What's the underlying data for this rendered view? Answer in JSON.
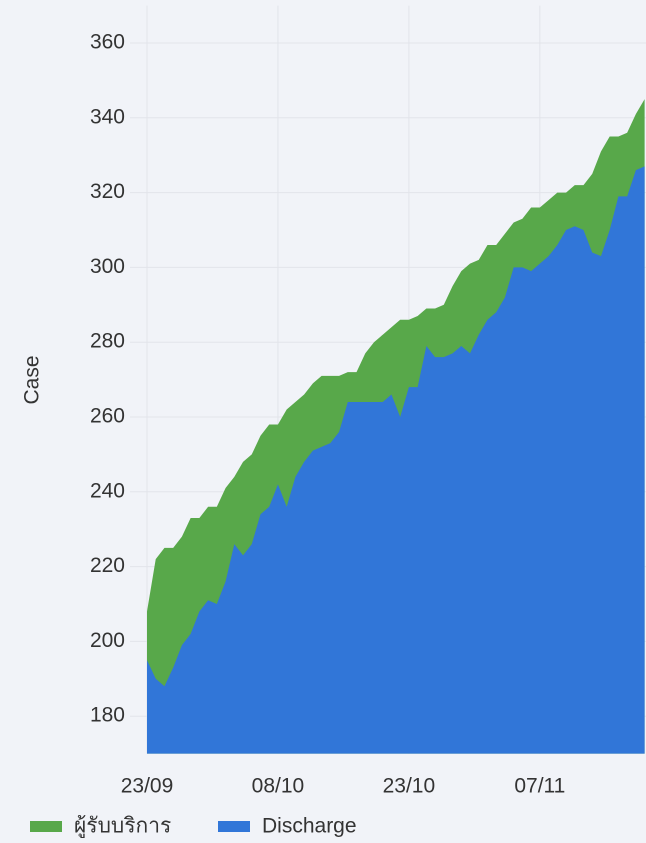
{
  "chart_data": {
    "type": "area",
    "y_label": "Case",
    "categories": [
      "23/09",
      null,
      null,
      null,
      null,
      null,
      null,
      null,
      null,
      null,
      null,
      null,
      null,
      null,
      null,
      "08/10",
      null,
      null,
      null,
      null,
      null,
      null,
      null,
      null,
      null,
      null,
      null,
      null,
      null,
      null,
      "23/10",
      null,
      null,
      null,
      null,
      null,
      null,
      null,
      null,
      null,
      null,
      null,
      null,
      null,
      null,
      "07/11",
      null,
      null,
      null,
      null,
      null,
      null,
      null,
      null,
      null,
      null,
      null,
      null
    ],
    "series": [
      {
        "name": "ผู้รับบริการ",
        "color": "#58a84a",
        "values": [
          208,
          222,
          225,
          225,
          228,
          233,
          233,
          236,
          236,
          241,
          244,
          248,
          250,
          255,
          258,
          258,
          262,
          264,
          266,
          269,
          271,
          271,
          271,
          272,
          272,
          277,
          280,
          282,
          284,
          286,
          286,
          287,
          289,
          289,
          290,
          295,
          299,
          301,
          302,
          306,
          306,
          309,
          312,
          313,
          316,
          316,
          318,
          320,
          320,
          322,
          322,
          325,
          331,
          335,
          335,
          336,
          341,
          345
        ]
      },
      {
        "name": "Discharge",
        "color": "#3176d8",
        "values": [
          195,
          190,
          188,
          193,
          199,
          202,
          208,
          211,
          210,
          216,
          226,
          223,
          226,
          234,
          236,
          242,
          236,
          244,
          248,
          251,
          252,
          253,
          256,
          264,
          264,
          264,
          264,
          264,
          266,
          260,
          268,
          268,
          279,
          276,
          276,
          277,
          279,
          277,
          282,
          286,
          288,
          292,
          300,
          300,
          299,
          301,
          303,
          306,
          310,
          311,
          310,
          304,
          303,
          310,
          319,
          319,
          326,
          327
        ]
      }
    ],
    "ylim": [
      170,
      370
    ],
    "yticks": [
      180,
      200,
      220,
      240,
      260,
      280,
      300,
      320,
      340,
      360
    ],
    "grid": true
  }
}
